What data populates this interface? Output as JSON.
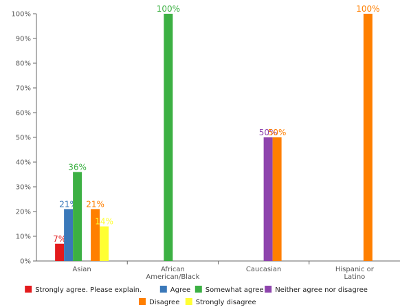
{
  "chart_data": {
    "type": "bar",
    "categories": [
      [
        "Asian"
      ],
      [
        "African",
        "American/Black"
      ],
      [
        "Caucasian"
      ],
      [
        "Hispanic or",
        "Latino"
      ]
    ],
    "series": [
      {
        "name": "Strongly agree. Please explain.",
        "color": "#e31a1c",
        "values": [
          7,
          null,
          null,
          null
        ]
      },
      {
        "name": "Agree",
        "color": "#3a78b9",
        "values": [
          21,
          null,
          null,
          null
        ]
      },
      {
        "name": "Somewhat agree",
        "color": "#3cb043",
        "values": [
          36,
          100,
          null,
          null
        ]
      },
      {
        "name": "Neither agree nor disagree",
        "color": "#8e44ad",
        "values": [
          null,
          null,
          50,
          null
        ]
      },
      {
        "name": "Disagree",
        "color": "#ff7f00",
        "values": [
          21,
          null,
          50,
          100
        ]
      },
      {
        "name": "Strongly disagree",
        "color": "#ffff33",
        "values": [
          14,
          null,
          null,
          null
        ]
      }
    ],
    "value_labels": [
      [
        "7%",
        null,
        null,
        null
      ],
      [
        "21%",
        null,
        null,
        null
      ],
      [
        "36%",
        "100%",
        null,
        null
      ],
      [
        null,
        null,
        "50%",
        null
      ],
      [
        "21%",
        null,
        "50%",
        "100%"
      ],
      [
        "14%",
        null,
        null,
        null
      ]
    ],
    "y_ticks": [
      {
        "value": 0,
        "label": "0%"
      },
      {
        "value": 10,
        "label": "10%"
      },
      {
        "value": 20,
        "label": "20%"
      },
      {
        "value": 30,
        "label": "30%"
      },
      {
        "value": 40,
        "label": "40%"
      },
      {
        "value": 50,
        "label": "50%"
      },
      {
        "value": 60,
        "label": "60%"
      },
      {
        "value": 70,
        "label": "70%"
      },
      {
        "value": 80,
        "label": "80%"
      },
      {
        "value": 90,
        "label": "90%"
      },
      {
        "value": 100,
        "label": "100%"
      }
    ],
    "ylim": [
      0,
      100
    ],
    "grid": false,
    "legend_position": "bottom",
    "title": "",
    "xlabel": "",
    "ylabel": ""
  }
}
